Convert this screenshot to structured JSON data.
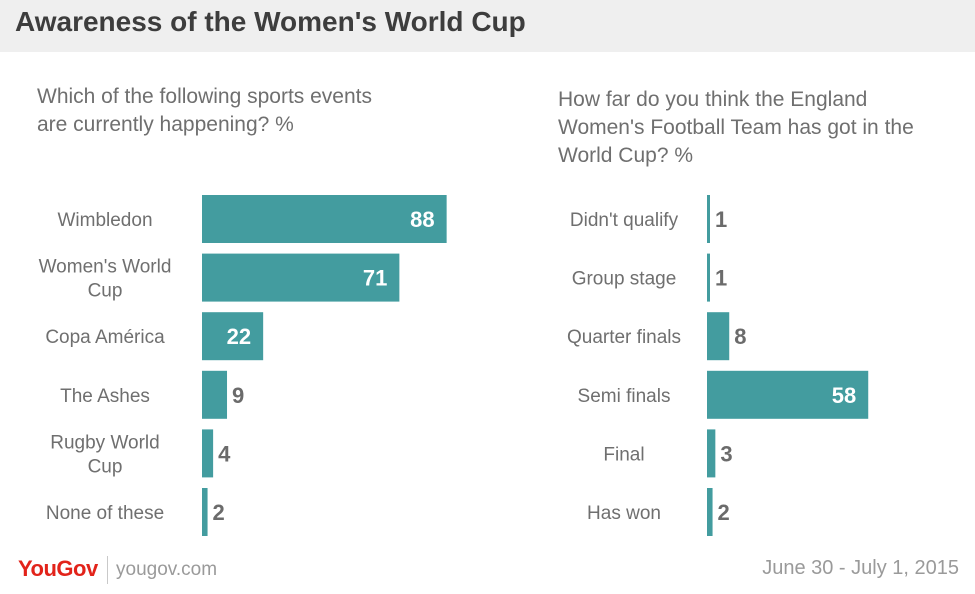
{
  "page": {
    "title": "Awareness of the Women's World Cup",
    "footer": {
      "logo": "YouGov",
      "url": "yougov.com",
      "date": "June 30 - July 1, 2015"
    },
    "colors": {
      "bar": "#439c9f",
      "header_bg": "#efefef",
      "logo": "#e2231a"
    }
  },
  "chart_data": [
    {
      "type": "bar",
      "orientation": "horizontal",
      "title": "Which of the following sports events are currently happening? %",
      "categories": [
        [
          "Wimbledon"
        ],
        [
          "Women's World",
          "Cup"
        ],
        [
          "Copa América"
        ],
        [
          "The Ashes"
        ],
        [
          "Rugby World",
          "Cup"
        ],
        [
          "None of these"
        ]
      ],
      "values": [
        88,
        71,
        22,
        9,
        4,
        2
      ],
      "xlim": [
        0,
        100
      ],
      "grid": false,
      "data_labels": true
    },
    {
      "type": "bar",
      "orientation": "horizontal",
      "title": "How far do you think the England Women's Football Team has got in the World Cup? %",
      "categories": [
        [
          "Didn't qualify"
        ],
        [
          "Group stage"
        ],
        [
          "Quarter finals"
        ],
        [
          "Semi finals"
        ],
        [
          "Final"
        ],
        [
          "Has won"
        ]
      ],
      "values": [
        1,
        1,
        8,
        58,
        3,
        2
      ],
      "xlim": [
        0,
        100
      ],
      "grid": false,
      "data_labels": true
    }
  ]
}
